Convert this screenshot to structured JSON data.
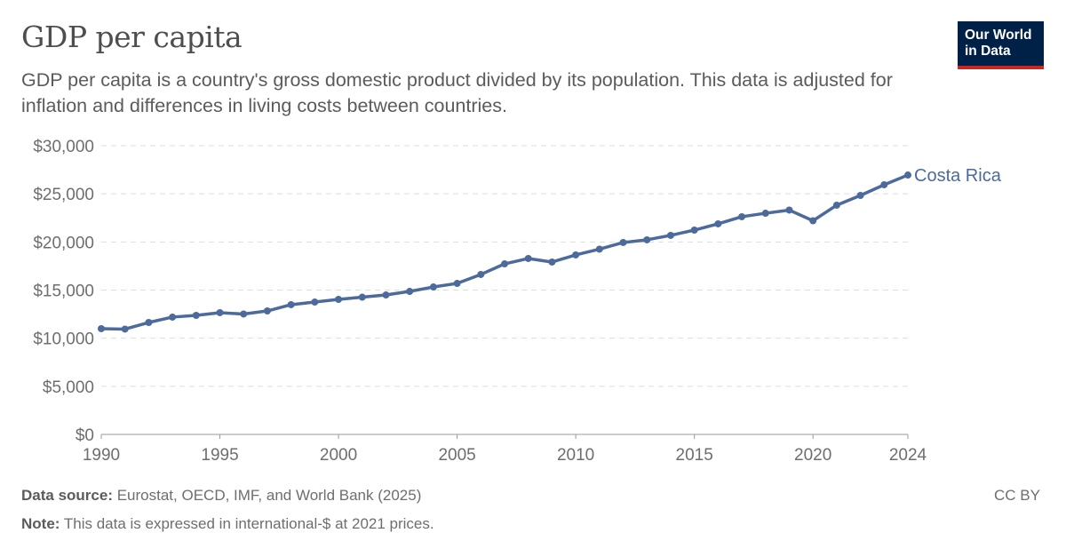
{
  "header": {
    "title": "GDP per capita",
    "subtitle": "GDP per capita is a country's gross domestic product divided by its population. This data is adjusted for inflation and differences in living costs between countries.",
    "logo_text": "Our World in Data"
  },
  "footer": {
    "source_label": "Data source:",
    "source": "Eurostat, OECD, IMF, and World Bank (2025)",
    "note_label": "Note:",
    "note": "This data is expressed in international-$ at 2021 prices.",
    "license": "CC BY"
  },
  "colors": {
    "series": "#4C6A9C",
    "logo_bg": "#002147",
    "logo_accent": "#ce261e"
  },
  "chart_data": {
    "type": "line",
    "title": "GDP per capita",
    "xlabel": "",
    "ylabel": "",
    "xlim": [
      1990,
      2024
    ],
    "ylim": [
      0,
      30000
    ],
    "grid": "horizontal dashed",
    "legend": "inline label at line end",
    "y_ticks": [
      {
        "v": 0,
        "label": "$0"
      },
      {
        "v": 5000,
        "label": "$5,000"
      },
      {
        "v": 10000,
        "label": "$10,000"
      },
      {
        "v": 15000,
        "label": "$15,000"
      },
      {
        "v": 20000,
        "label": "$20,000"
      },
      {
        "v": 25000,
        "label": "$25,000"
      },
      {
        "v": 30000,
        "label": "$30,000"
      }
    ],
    "x_ticks": [
      {
        "v": 1990,
        "label": "1990"
      },
      {
        "v": 1995,
        "label": "1995"
      },
      {
        "v": 2000,
        "label": "2000"
      },
      {
        "v": 2005,
        "label": "2005"
      },
      {
        "v": 2010,
        "label": "2010"
      },
      {
        "v": 2015,
        "label": "2015"
      },
      {
        "v": 2020,
        "label": "2020"
      },
      {
        "v": 2024,
        "label": "2024"
      }
    ],
    "series": [
      {
        "name": "Costa Rica",
        "x": [
          1990,
          1991,
          1992,
          1993,
          1994,
          1995,
          1996,
          1997,
          1998,
          1999,
          2000,
          2001,
          2002,
          2003,
          2004,
          2005,
          2006,
          2007,
          2008,
          2009,
          2010,
          2011,
          2012,
          2013,
          2014,
          2015,
          2016,
          2017,
          2018,
          2019,
          2020,
          2021,
          2022,
          2023,
          2024
        ],
        "values": [
          10990,
          10940,
          11630,
          12190,
          12370,
          12650,
          12510,
          12830,
          13480,
          13750,
          14030,
          14260,
          14490,
          14860,
          15320,
          15690,
          16620,
          17720,
          18280,
          17910,
          18650,
          19250,
          19940,
          20220,
          20680,
          21230,
          21880,
          22620,
          22980,
          23310,
          22200,
          23820,
          24830,
          25940,
          26950
        ]
      }
    ]
  }
}
